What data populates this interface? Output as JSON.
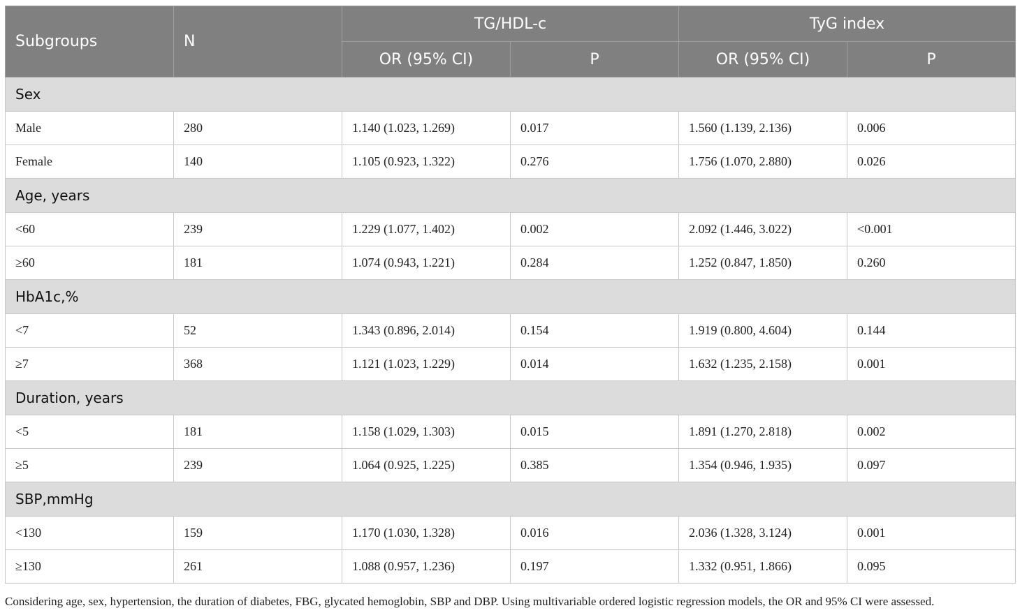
{
  "header": {
    "subgroups": "Subgroups",
    "n": "N",
    "groups": [
      "TG/HDL-c",
      "TyG index"
    ],
    "or_ci": "OR (95% CI)",
    "p": "P"
  },
  "colors": {
    "header_bg": "#808080",
    "section_bg": "#dcdcdc"
  },
  "sections": [
    {
      "label": "Sex",
      "rows": [
        {
          "name": "Male",
          "n": "280",
          "tg_or": "1.140 (1.023, 1.269)",
          "tg_p": "0.017",
          "tyg_or": "1.560 (1.139, 2.136)",
          "tyg_p": "0.006"
        },
        {
          "name": "Female",
          "n": "140",
          "tg_or": "1.105 (0.923, 1.322)",
          "tg_p": "0.276",
          "tyg_or": "1.756 (1.070, 2.880)",
          "tyg_p": "0.026"
        }
      ]
    },
    {
      "label": "Age, years",
      "rows": [
        {
          "name": "<60",
          "n": "239",
          "tg_or": "1.229 (1.077, 1.402)",
          "tg_p": "0.002",
          "tyg_or": "2.092 (1.446, 3.022)",
          "tyg_p": "<0.001"
        },
        {
          "name": "≥60",
          "n": "181",
          "tg_or": "1.074 (0.943, 1.221)",
          "tg_p": "0.284",
          "tyg_or": "1.252 (0.847, 1.850)",
          "tyg_p": "0.260"
        }
      ]
    },
    {
      "label": "HbA1c,%",
      "rows": [
        {
          "name": "<7",
          "n": "52",
          "tg_or": "1.343 (0.896, 2.014)",
          "tg_p": "0.154",
          "tyg_or": "1.919 (0.800, 4.604)",
          "tyg_p": "0.144"
        },
        {
          "name": "≥7",
          "n": "368",
          "tg_or": "1.121 (1.023, 1.229)",
          "tg_p": "0.014",
          "tyg_or": "1.632 (1.235, 2.158)",
          "tyg_p": "0.001"
        }
      ]
    },
    {
      "label": "Duration, years",
      "rows": [
        {
          "name": "<5",
          "n": "181",
          "tg_or": "1.158 (1.029, 1.303)",
          "tg_p": "0.015",
          "tyg_or": "1.891 (1.270, 2.818)",
          "tyg_p": "0.002"
        },
        {
          "name": "≥5",
          "n": "239",
          "tg_or": "1.064 (0.925, 1.225)",
          "tg_p": "0.385",
          "tyg_or": "1.354 (0.946, 1.935)",
          "tyg_p": "0.097"
        }
      ]
    },
    {
      "label": "SBP,mmHg",
      "rows": [
        {
          "name": "<130",
          "n": "159",
          "tg_or": "1.170 (1.030, 1.328)",
          "tg_p": "0.016",
          "tyg_or": "2.036 (1.328, 3.124)",
          "tyg_p": "0.001"
        },
        {
          "name": "≥130",
          "n": "261",
          "tg_or": "1.088 (0.957, 1.236)",
          "tg_p": "0.197",
          "tyg_or": "1.332 (0.951, 1.866)",
          "tyg_p": "0.095"
        }
      ]
    }
  ],
  "footnote": "Considering age, sex, hypertension, the duration of diabetes, FBG, glycated hemoglobin, SBP and DBP. Using multivariable ordered logistic regression models, the OR and 95% CI were assessed."
}
